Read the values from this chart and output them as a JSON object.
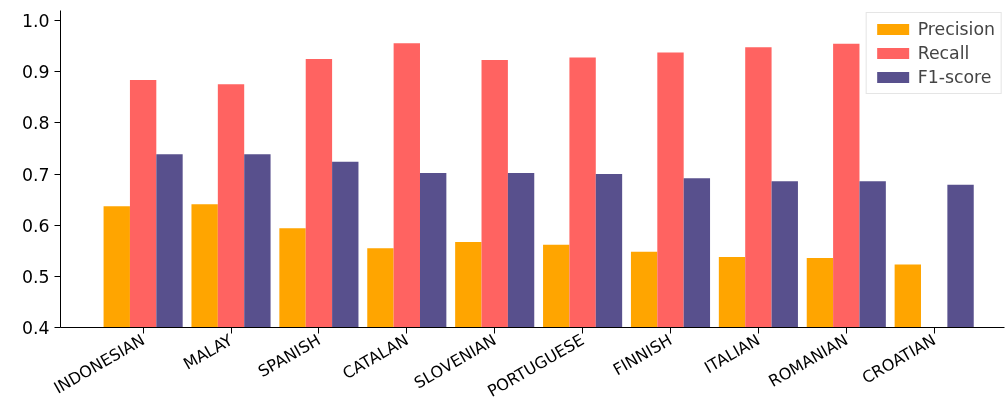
{
  "chart_data": {
    "type": "bar",
    "categories": [
      "INDONESIAN",
      "MALAY",
      "SPANISH",
      "CATALAN",
      "SLOVENIAN",
      "PORTUGUESE",
      "FINNISH",
      "ITALIAN",
      "ROMANIAN",
      "CROATIAN"
    ],
    "series": [
      {
        "name": "Precision",
        "color": "#ffa500",
        "values": [
          0.637,
          0.641,
          0.594,
          0.555,
          0.567,
          0.562,
          0.548,
          0.538,
          0.536,
          0.523
        ]
      },
      {
        "name": "Recall",
        "color": "#ff6361",
        "values": [
          0.884,
          0.876,
          0.925,
          0.956,
          0.923,
          0.928,
          0.938,
          0.948,
          0.955,
          null
        ]
      },
      {
        "name": "F1-score",
        "color": "#58508d",
        "values": [
          0.739,
          0.739,
          0.724,
          0.702,
          0.702,
          0.7,
          0.692,
          0.686,
          0.686,
          0.679
        ]
      }
    ],
    "ylim": [
      0.4,
      1.02
    ],
    "yticks": [
      {
        "value": 0.4,
        "label": "0.4"
      },
      {
        "value": 0.5,
        "label": "0.5"
      },
      {
        "value": 0.6,
        "label": "0.6"
      },
      {
        "value": 0.7,
        "label": "0.7"
      },
      {
        "value": 0.8,
        "label": "0.8"
      },
      {
        "value": 0.9,
        "label": "0.9"
      },
      {
        "value": 1.0,
        "label": "1.0"
      }
    ],
    "grid": false,
    "legend": "top right"
  }
}
